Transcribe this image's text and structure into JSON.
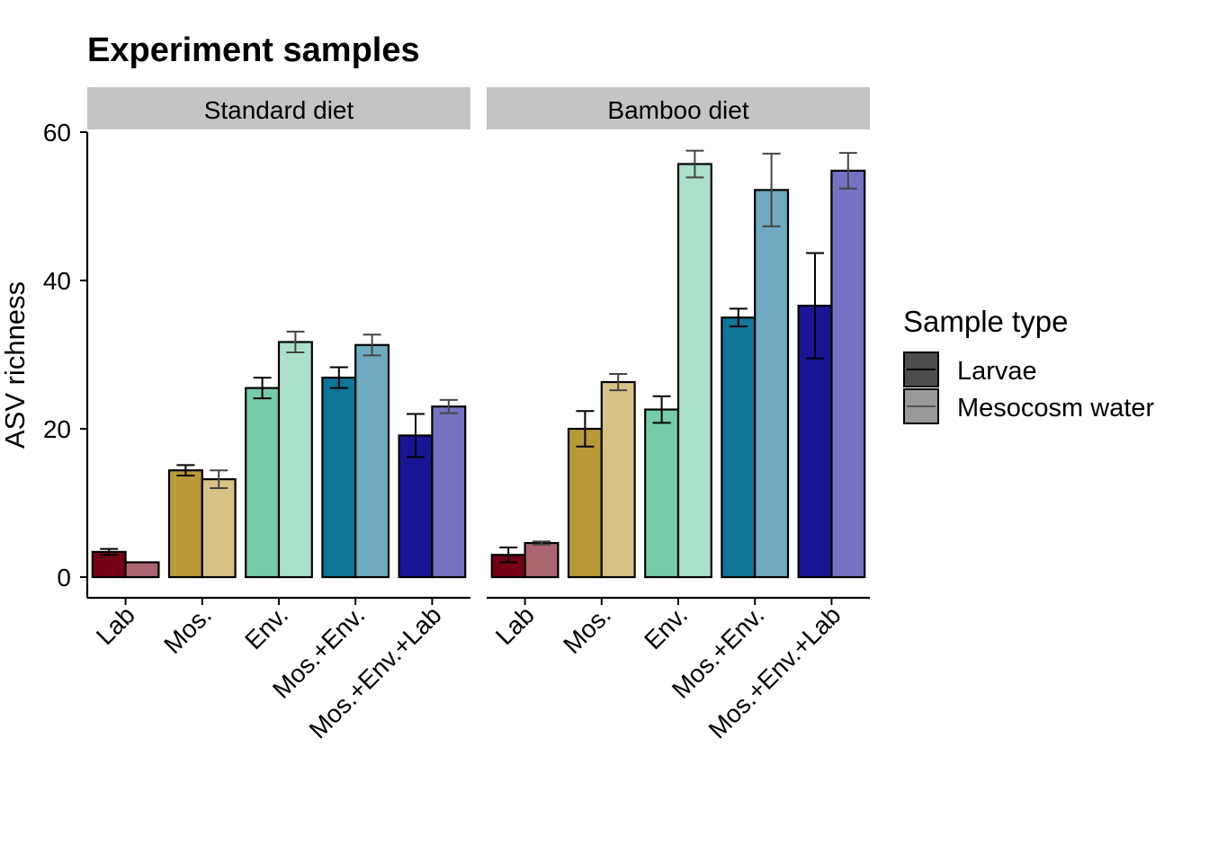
{
  "chart_data": {
    "type": "bar",
    "title": "Experiment samples",
    "ylabel": "ASV richness",
    "xlabel": "",
    "ylim": [
      0,
      60
    ],
    "yticks": [
      0,
      20,
      40,
      60
    ],
    "categories": [
      "Lab",
      "Mos.",
      "Env.",
      "Mos.+Env.",
      "Mos.+Env.+Lab"
    ],
    "facets": [
      {
        "label": "Standard diet",
        "series": [
          {
            "name": "Larvae",
            "values": [
              3.4,
              14.4,
              25.5,
              26.9,
              19.1
            ],
            "err": [
              0.4,
              0.7,
              1.4,
              1.4,
              2.9
            ]
          },
          {
            "name": "Mesocosm water",
            "values": [
              2.0,
              13.2,
              31.7,
              31.3,
              23.0
            ],
            "err": [
              0,
              1.2,
              1.4,
              1.4,
              0.9
            ]
          }
        ]
      },
      {
        "label": "Bamboo diet",
        "series": [
          {
            "name": "Larvae",
            "values": [
              3.0,
              20.0,
              22.6,
              35.0,
              36.6
            ],
            "err": [
              1.0,
              2.4,
              1.8,
              1.2,
              7.1
            ]
          },
          {
            "name": "Mesocosm water",
            "values": [
              4.6,
              26.3,
              55.7,
              52.2,
              54.8
            ],
            "err": [
              0.2,
              1.1,
              1.8,
              4.9,
              2.4
            ]
          }
        ]
      }
    ],
    "colors": {
      "Larvae": [
        "#730017",
        "#B89A3A",
        "#76CBA9",
        "#107597",
        "#191595"
      ],
      "Mesocosm water": [
        "#AA6571",
        "#D9C288",
        "#ACE0CB",
        "#70AAC1",
        "#7573C1"
      ]
    },
    "legend": {
      "title": "Sample type",
      "position": "right",
      "entries": [
        {
          "name": "Larvae",
          "color": "#4d4d4d"
        },
        {
          "name": "Mesocosm water",
          "color": "#999999"
        }
      ]
    },
    "grid": false
  }
}
